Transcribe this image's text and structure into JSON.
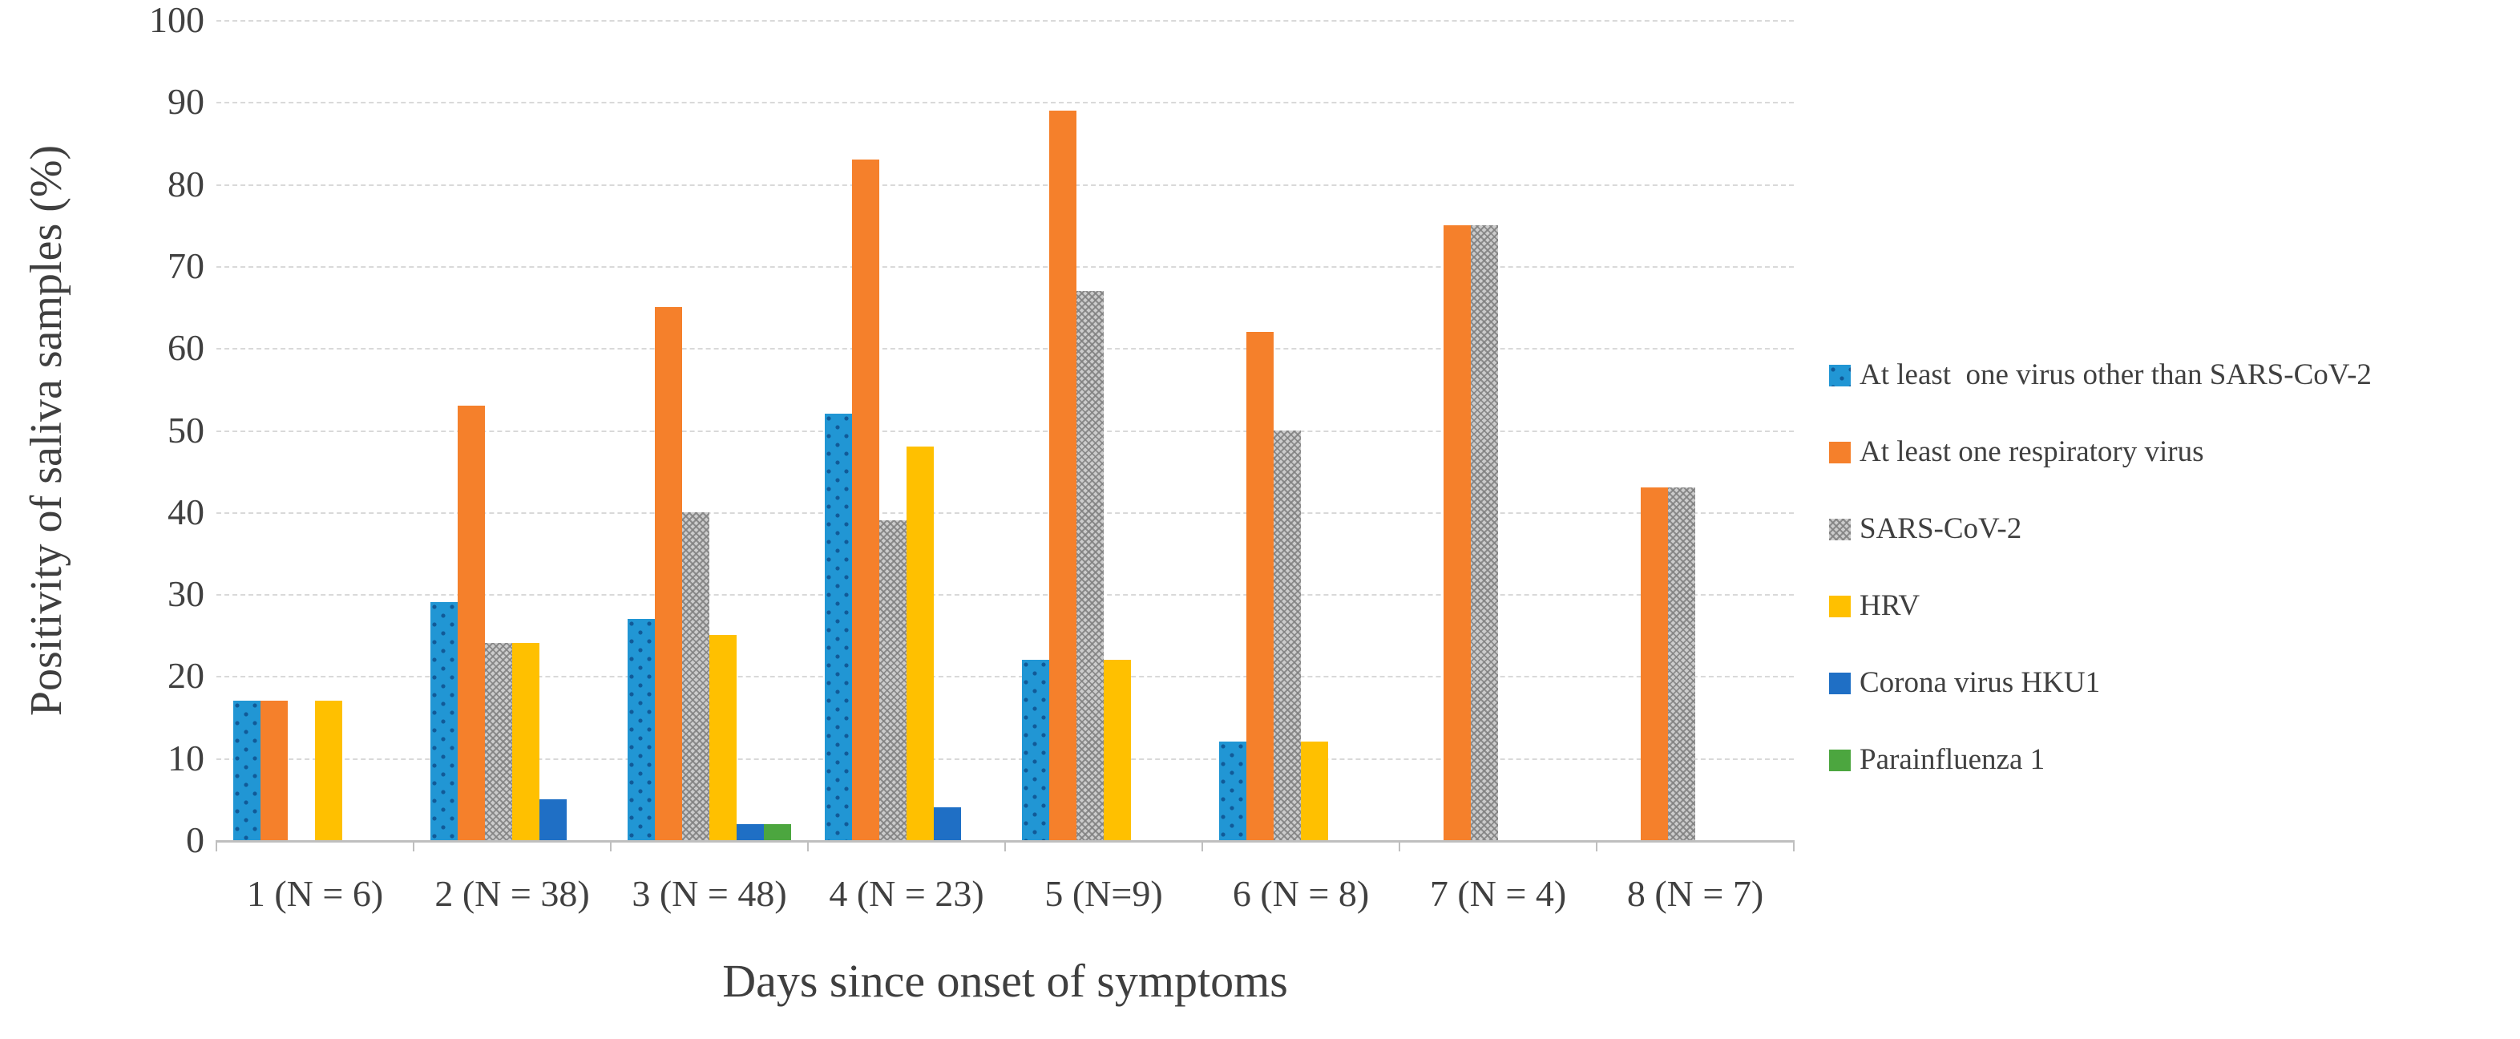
{
  "chart_data": {
    "type": "bar",
    "title": "",
    "xlabel": "Days since onset of symptoms",
    "ylabel": "Positivity of saliva samples (%)",
    "ylim": [
      0,
      100
    ],
    "yticks": [
      0,
      10,
      20,
      30,
      40,
      50,
      60,
      70,
      80,
      90,
      100
    ],
    "grid": true,
    "legend_position": "right",
    "categories": [
      "1 (N = 6)",
      "2 (N = 38)",
      "3 (N = 48)",
      "4 (N = 23)",
      "5 (N=9)",
      "6 (N = 8)",
      "7 (N = 4)",
      "8 (N = 7)"
    ],
    "series": [
      {
        "name": "At least  one virus other than SARS-CoV-2",
        "color": "#2196d4",
        "pattern": "dots",
        "values": [
          17,
          29,
          27,
          52,
          22,
          12,
          0,
          0
        ]
      },
      {
        "name": "At least one respiratory virus",
        "color": "#f5802b",
        "pattern": "solid",
        "values": [
          17,
          53,
          65,
          83,
          89,
          62,
          75,
          43
        ]
      },
      {
        "name": "SARS-CoV-2",
        "color": "#cccccc",
        "pattern": "hatch",
        "values": [
          0,
          24,
          40,
          39,
          67,
          50,
          75,
          43
        ]
      },
      {
        "name": "HRV",
        "color": "#ffc000",
        "pattern": "solid",
        "values": [
          17,
          24,
          25,
          48,
          22,
          12,
          0,
          0
        ]
      },
      {
        "name": "Corona virus HKU1",
        "color": "#1f6fc5",
        "pattern": "solid",
        "values": [
          0,
          5,
          2,
          4,
          0,
          0,
          0,
          0
        ]
      },
      {
        "name": "Parainfluenza 1",
        "color": "#4ca63f",
        "pattern": "solid",
        "values": [
          0,
          0,
          2,
          0,
          0,
          0,
          0,
          0
        ]
      }
    ],
    "colors": {
      "gridline": "#d9d9d9",
      "axis_line": "#bfbfbf",
      "text": "#404040"
    }
  }
}
